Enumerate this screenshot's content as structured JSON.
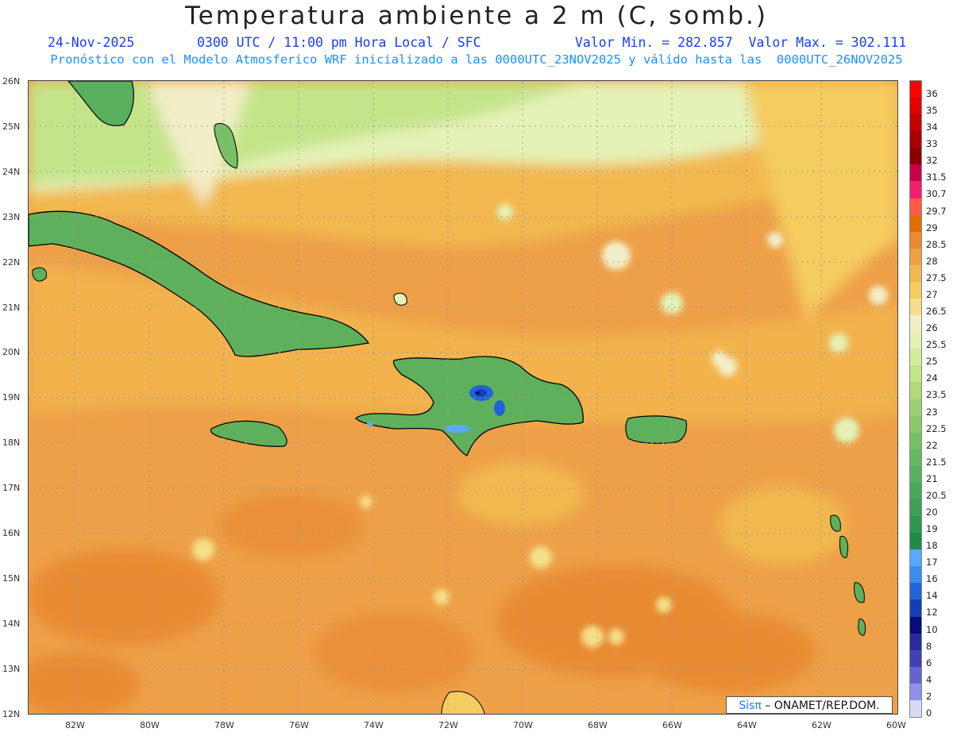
{
  "header": {
    "title": "Temperatura ambiente a 2 m (C, somb.)",
    "date": "24-Nov-2025",
    "time": "0300 UTC / 11:00 pm Hora Local / SFC",
    "minmax": "Valor Min. = 282.857  Valor Max. = 302.111",
    "model_line": "Pronóstico con el Modelo Atmosferico WRF inicializado a las 0000UTC_23NOV2025 y válido hasta las  0000UTC_26NOV2025"
  },
  "lat_labels": [
    "26N",
    "25N",
    "24N",
    "23N",
    "22N",
    "21N",
    "20N",
    "19N",
    "18N",
    "17N",
    "16N",
    "15N",
    "14N",
    "13N",
    "12N"
  ],
  "lon_labels": [
    "82W",
    "80W",
    "78W",
    "76W",
    "74W",
    "72W",
    "70W",
    "68W",
    "66W",
    "64W",
    "62W",
    "60W"
  ],
  "colorbar": {
    "labels": [
      "36",
      "35",
      "34",
      "33",
      "32",
      "31.5",
      "30.7",
      "29.7",
      "29",
      "28.5",
      "28",
      "27.5",
      "27",
      "26.5",
      "26",
      "25.5",
      "25",
      "24",
      "23.5",
      "23",
      "22.5",
      "22",
      "21.5",
      "21",
      "20.5",
      "20",
      "19",
      "18",
      "17",
      "16",
      "14",
      "12",
      "10",
      "8",
      "6",
      "4",
      "2",
      "0"
    ],
    "colors": [
      "#ff0000",
      "#e00000",
      "#c40000",
      "#a80000",
      "#8a0000",
      "#c8004a",
      "#f0206e",
      "#ff5a46",
      "#e07000",
      "#ea8a30",
      "#eea048",
      "#f2b850",
      "#f4cc60",
      "#f4e08a",
      "#f2eec8",
      "#e4f2b8",
      "#d4eca0",
      "#c4e48a",
      "#b0da7c",
      "#9cd072",
      "#8ac86c",
      "#78c066",
      "#66b862",
      "#58b05e",
      "#4aa85a",
      "#3ca056",
      "#2e9852",
      "#1e8c48",
      "#5aa8ff",
      "#3c8cf0",
      "#2064d8",
      "#1440b4",
      "#0a0a78",
      "#2a2a9a",
      "#4040b8",
      "#6464d0",
      "#9090e8",
      "#d8d8f8"
    ]
  },
  "credit": {
    "sis": "Sisπ",
    "rest": " – ONAMET/REP.DOM."
  }
}
